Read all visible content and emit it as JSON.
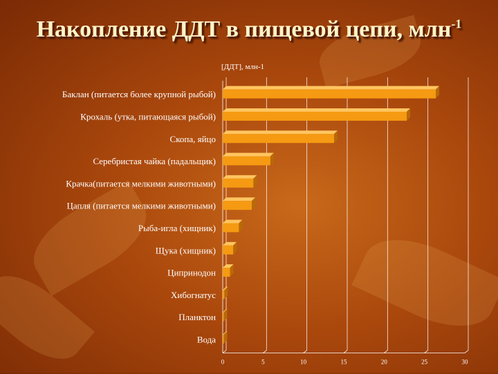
{
  "slide": {
    "title_main": "Накопление ДДТ в пищевой цепи, млн",
    "title_sup": "-1"
  },
  "colors": {
    "bar_front": "#f59a12",
    "bar_top": "#ffc560",
    "bar_side": "#b86a08",
    "text": "#ffffff"
  },
  "chart_data": {
    "type": "bar",
    "orientation": "horizontal",
    "title": "[ДДТ], млн-1",
    "categories": [
      "Баклан (питается более крупной рыбой)",
      "Крохаль (утка, питающаяся рыбой)",
      "Скопа, яйцо",
      "Серебристая чайка (падальщик)",
      "Крачка(питается мелкими животными)",
      "Цапля (питается мелкими животными)",
      "Рыба-игла (хищник)",
      "Щука (хищник)",
      "Ципринодон",
      "Хибогнатус",
      "Планктон",
      "Вода"
    ],
    "values": [
      26.4,
      22.8,
      13.8,
      5.9,
      3.8,
      3.6,
      2.0,
      1.3,
      0.9,
      0.2,
      0.04,
      5e-05
    ],
    "xlim": [
      0,
      30
    ],
    "xticks": [
      "0",
      "5",
      "10",
      "15",
      "20",
      "25",
      "30"
    ],
    "grid": true
  }
}
